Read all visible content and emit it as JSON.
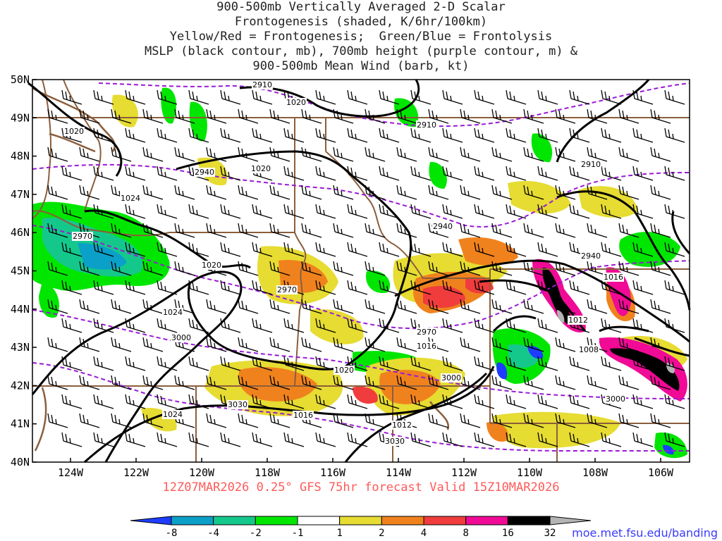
{
  "title_lines": [
    "900-500mb Vertically Averaged 2-D Scalar",
    "Frontogenesis (shaded, K/6hr/100km)",
    "Yellow/Red = Frontogenesis;  Green/Blue = Frontolysis",
    "MSLP (black contour, mb), 700mb height (purple contour, m) &",
    "900-500mb Mean Wind (barb, kt)"
  ],
  "subtitle": "12Z07MAR2026 0.25° GFS 75hr forecast Valid 15Z10MAR2026",
  "credit": "moe.met.fsu.edu/banding",
  "map": {
    "lat_labels": [
      "50N",
      "49N",
      "48N",
      "47N",
      "46N",
      "45N",
      "44N",
      "43N",
      "42N",
      "41N",
      "40N"
    ],
    "lon_labels": [
      "124W",
      "122W",
      "120W",
      "118W",
      "116W",
      "114W",
      "112W",
      "110W",
      "108W",
      "106W"
    ],
    "mslp_labels": [
      "1020",
      "1020",
      "1020",
      "1024",
      "1024",
      "1024",
      "1020",
      "1016",
      "1012",
      "1016",
      "1016",
      "1012",
      "1008",
      "1020"
    ],
    "height_labels": [
      "2910",
      "2910",
      "2910",
      "2940",
      "2940",
      "2940",
      "2970",
      "2970",
      "2970",
      "3000",
      "3000",
      "3000",
      "3030",
      "3030"
    ]
  },
  "colorbar": {
    "tick_labels": [
      "-8",
      "-4",
      "-2",
      "-1",
      "1",
      "2",
      "4",
      "8",
      "16",
      "32"
    ],
    "colors": [
      "#1e3cff",
      "#0aa0c8",
      "#14c88c",
      "#00e600",
      "#ffffff",
      "#e6dc32",
      "#f0821e",
      "#f03c3c",
      "#f00a96",
      "#000000",
      "#b4b4b4"
    ]
  },
  "colors": {
    "mslp": "#000000",
    "height": "#9a1ad6",
    "borders": "#8b5e3c",
    "subtitle": "#ff5a5a",
    "credit": "#3a3aff"
  }
}
